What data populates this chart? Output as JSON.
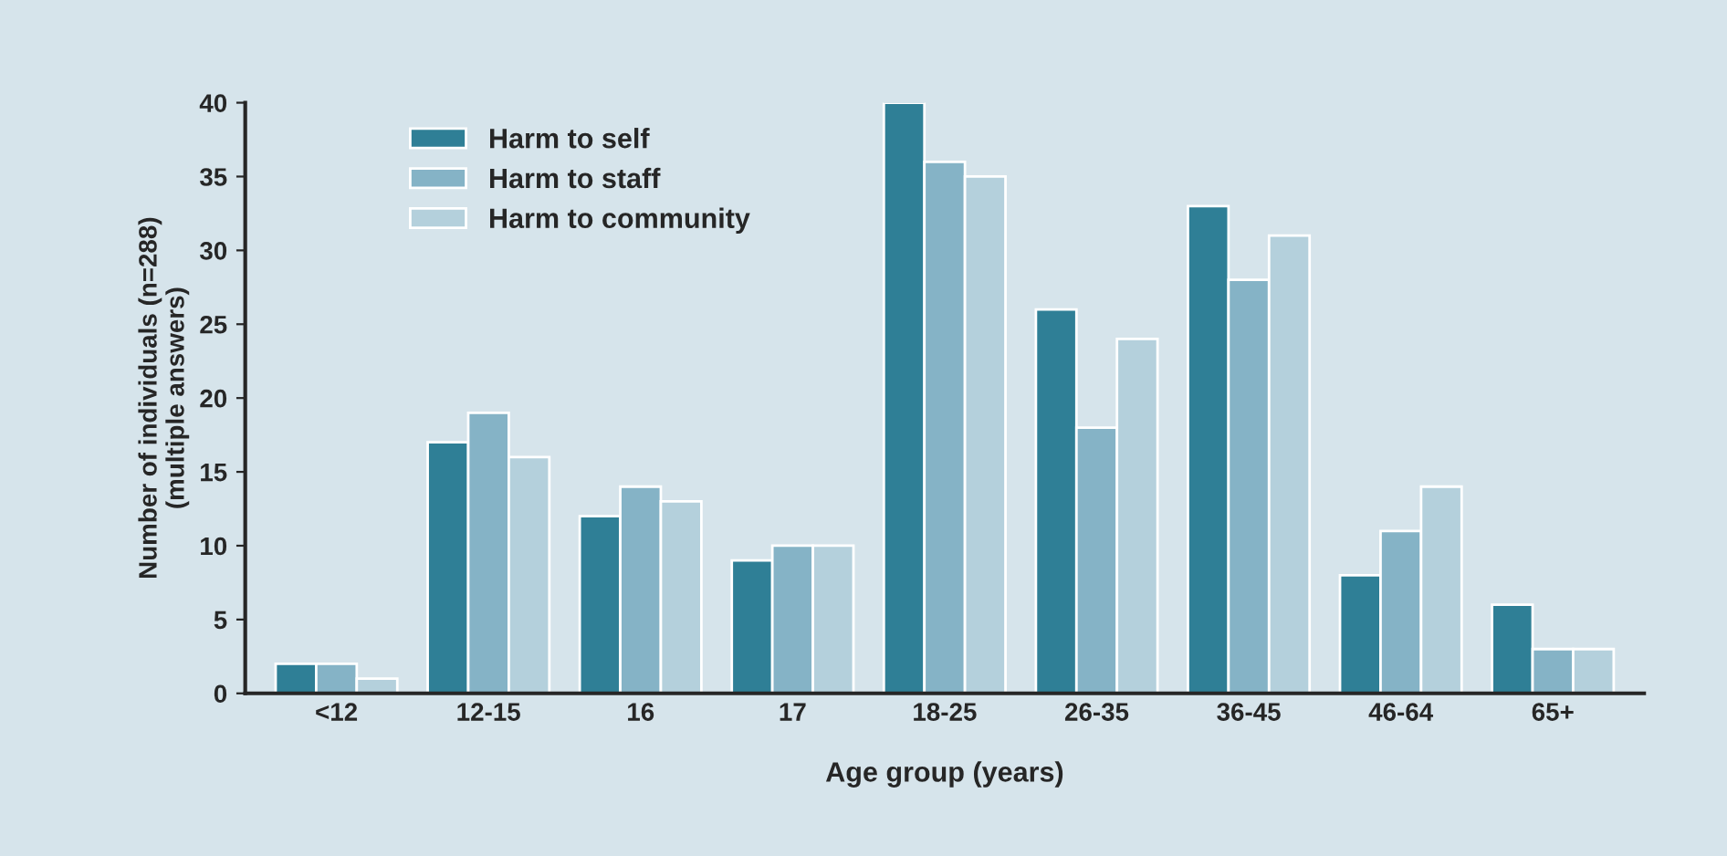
{
  "chart_data": {
    "type": "bar",
    "xlabel": "Age group (years)",
    "ylabel": "Number of individuals (n=288)\n(multiple answers)",
    "categories": [
      "<12",
      "12-15",
      "16",
      "17",
      "18-25",
      "26-35",
      "36-45",
      "46-64",
      "65+"
    ],
    "series": [
      {
        "name": "Harm to self",
        "color": "#2f7f96",
        "values": [
          2,
          17,
          12,
          9,
          40,
          26,
          33,
          8,
          6
        ]
      },
      {
        "name": "Harm to staff",
        "color": "#85b3c6",
        "values": [
          2,
          19,
          14,
          10,
          36,
          18,
          28,
          11,
          3
        ]
      },
      {
        "name": "Harm to community",
        "color": "#b4d0dc",
        "values": [
          1,
          16,
          13,
          10,
          35,
          24,
          31,
          14,
          3
        ]
      }
    ],
    "ylim": [
      0,
      40
    ],
    "yticks": [
      0,
      5,
      10,
      15,
      20,
      25,
      30,
      35,
      40
    ],
    "grid": false,
    "legend": "top left"
  }
}
